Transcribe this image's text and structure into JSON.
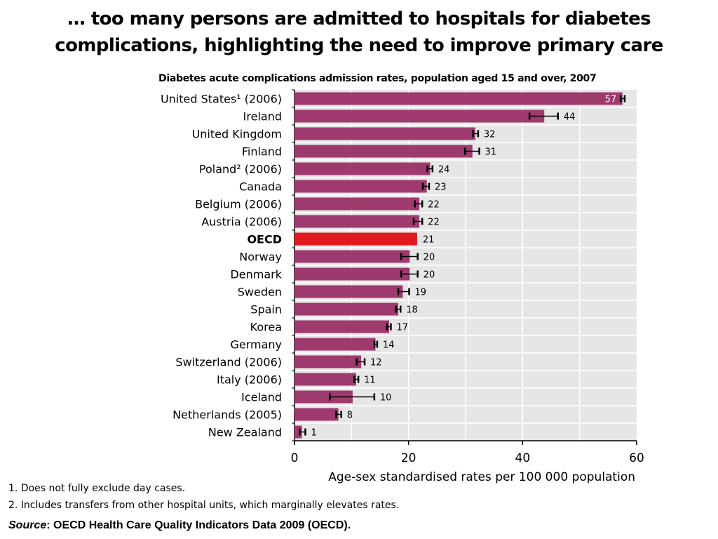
{
  "slide": {
    "title_line1": "… too many persons are admitted to hospitals for diabetes",
    "title_line2": "complications, highlighting the need to improve primary care"
  },
  "chart_data": {
    "type": "bar",
    "orientation": "horizontal",
    "title": "Diabetes acute complications admission rates, population aged 15 and over, 2007",
    "xlabel": "Age-sex standardised rates per 100 000 population",
    "ylabel": "",
    "xlim": [
      0,
      60
    ],
    "xticks": [
      "0",
      "20",
      "40",
      "60"
    ],
    "grid": true,
    "categories": [
      "United States¹ (2006)",
      "Ireland",
      "United Kingdom",
      "Finland",
      "Poland² (2006)",
      "Canada",
      "Belgium (2006)",
      "Austria (2006)",
      "OECD",
      "Norway",
      "Denmark",
      "Sweden",
      "Spain",
      "Korea",
      "Germany",
      "Switzerland (2006)",
      "Italy (2006)",
      "Iceland",
      "Netherlands (2005)",
      "New Zealand"
    ],
    "values": [
      57.5,
      43.8,
      31.7,
      31.2,
      23.8,
      23.2,
      21.9,
      21.9,
      21.5,
      20.2,
      20.2,
      19.0,
      18.2,
      16.6,
      14.2,
      11.7,
      10.8,
      10.2,
      7.7,
      1.3
    ],
    "value_labels": [
      "57",
      "44",
      "32",
      "31",
      "24",
      "23",
      "22",
      "22",
      "21",
      "20",
      "20",
      "19",
      "18",
      "17",
      "14",
      "12",
      "11",
      "10",
      "8",
      "1"
    ],
    "error_low": [
      57.2,
      41.2,
      31.3,
      29.9,
      23.3,
      22.5,
      21.1,
      20.9,
      21.5,
      18.7,
      18.7,
      18.2,
      17.8,
      16.2,
      14.0,
      10.9,
      10.5,
      6.2,
      7.3,
      0.9
    ],
    "error_high": [
      57.9,
      46.2,
      32.2,
      32.4,
      24.2,
      23.6,
      22.4,
      22.4,
      21.5,
      21.6,
      21.6,
      20.1,
      18.6,
      16.9,
      14.5,
      12.3,
      11.2,
      14.0,
      8.2,
      1.9
    ],
    "bar_color": "#9e3a6e",
    "highlight_category": "OECD",
    "highlight_color": "#e0191e",
    "plot_background": "#e6e6e6"
  },
  "footnotes": {
    "note1": "1. Does not fully exclude day cases.",
    "note2": "2. Includes transfers from other hospital units, which marginally elevates rates.",
    "source_label": "Source",
    "source_text": ": OECD Health Care Quality Indicators Data 2009 (OECD)."
  }
}
